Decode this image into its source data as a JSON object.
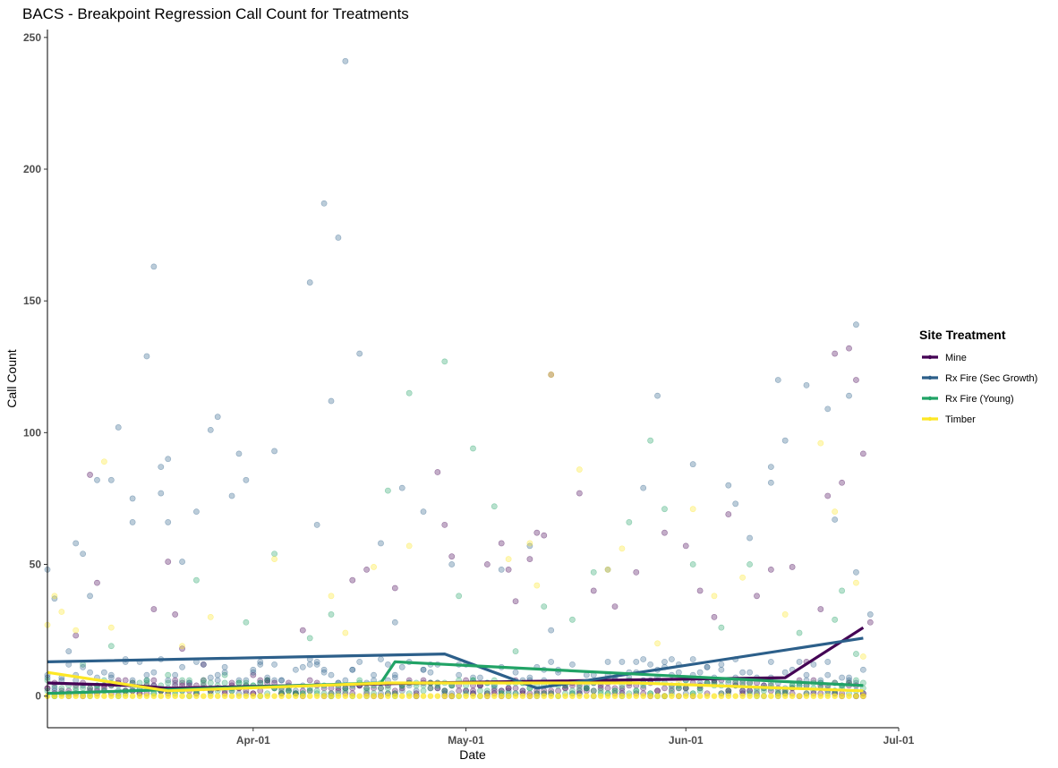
{
  "chart_data": {
    "type": "scatter",
    "title": "BACS - Breakpoint Regression Call Count for Treatments",
    "xlabel": "Date",
    "ylabel": "Call Count",
    "x_range": [
      "2024-03-03",
      "2024-07-01"
    ],
    "x_ticks": [
      {
        "date": "2024-04-01",
        "label": "Apr-01"
      },
      {
        "date": "2024-05-01",
        "label": "May-01"
      },
      {
        "date": "2024-06-01",
        "label": "Jun-01"
      },
      {
        "date": "2024-07-01",
        "label": "Jul-01"
      }
    ],
    "ylim": [
      -12,
      253
    ],
    "y_ticks": [
      0,
      50,
      100,
      150,
      200,
      250
    ],
    "grid": false,
    "legend": {
      "title": "Site Treatment",
      "position": "right"
    },
    "series": [
      {
        "name": "Mine",
        "color": "#440154",
        "regression": [
          [
            "2024-03-03",
            5
          ],
          [
            "2024-03-15",
            4
          ],
          [
            "2024-03-20",
            3
          ],
          [
            "2024-04-25",
            5
          ],
          [
            "2024-06-15",
            7
          ],
          [
            "2024-06-26",
            26
          ]
        ],
        "points": [
          [
            "2024-03-07",
            23
          ],
          [
            "2024-03-09",
            84
          ],
          [
            "2024-03-10",
            43
          ],
          [
            "2024-03-18",
            33
          ],
          [
            "2024-03-20",
            51
          ],
          [
            "2024-03-21",
            31
          ],
          [
            "2024-03-22",
            18
          ],
          [
            "2024-03-25",
            12
          ],
          [
            "2024-04-01",
            8
          ],
          [
            "2024-04-08",
            25
          ],
          [
            "2024-04-15",
            44
          ],
          [
            "2024-04-17",
            48
          ],
          [
            "2024-04-21",
            41
          ],
          [
            "2024-04-26",
            3
          ],
          [
            "2024-04-27",
            85
          ],
          [
            "2024-04-28",
            65
          ],
          [
            "2024-04-29",
            53
          ],
          [
            "2024-05-04",
            50
          ],
          [
            "2024-05-06",
            58
          ],
          [
            "2024-05-07",
            48
          ],
          [
            "2024-05-08",
            36
          ],
          [
            "2024-05-10",
            52
          ],
          [
            "2024-05-11",
            62
          ],
          [
            "2024-05-12",
            61
          ],
          [
            "2024-05-13",
            122
          ],
          [
            "2024-05-17",
            77
          ],
          [
            "2024-05-19",
            40
          ],
          [
            "2024-05-22",
            34
          ],
          [
            "2024-05-25",
            47
          ],
          [
            "2024-05-29",
            62
          ],
          [
            "2024-06-01",
            57
          ],
          [
            "2024-06-03",
            40
          ],
          [
            "2024-06-05",
            30
          ],
          [
            "2024-06-07",
            69
          ],
          [
            "2024-06-11",
            38
          ],
          [
            "2024-06-13",
            48
          ],
          [
            "2024-06-16",
            49
          ],
          [
            "2024-06-18",
            13
          ],
          [
            "2024-06-20",
            33
          ],
          [
            "2024-06-21",
            76
          ],
          [
            "2024-06-22",
            130
          ],
          [
            "2024-06-23",
            81
          ],
          [
            "2024-06-24",
            132
          ],
          [
            "2024-06-25",
            120
          ],
          [
            "2024-06-26",
            92
          ],
          [
            "2024-06-27",
            28
          ],
          [
            "2024-03-14",
            2
          ],
          [
            "2024-04-05",
            1
          ],
          [
            "2024-05-02",
            2
          ],
          [
            "2024-06-09",
            1
          ]
        ]
      },
      {
        "name": "Rx Fire (Sec Growth)",
        "color": "#2c5f8a",
        "regression": [
          [
            "2024-03-03",
            13
          ],
          [
            "2024-04-28",
            16
          ],
          [
            "2024-05-11",
            3
          ],
          [
            "2024-06-26",
            22
          ]
        ],
        "points": [
          [
            "2024-03-03",
            48
          ],
          [
            "2024-03-04",
            37
          ],
          [
            "2024-03-06",
            17
          ],
          [
            "2024-03-07",
            58
          ],
          [
            "2024-03-08",
            54
          ],
          [
            "2024-03-09",
            38
          ],
          [
            "2024-03-10",
            82
          ],
          [
            "2024-03-12",
            82
          ],
          [
            "2024-03-13",
            102
          ],
          [
            "2024-03-15",
            66
          ],
          [
            "2024-03-15",
            75
          ],
          [
            "2024-03-17",
            129
          ],
          [
            "2024-03-18",
            163
          ],
          [
            "2024-03-19",
            87
          ],
          [
            "2024-03-19",
            77
          ],
          [
            "2024-03-20",
            90
          ],
          [
            "2024-03-20",
            66
          ],
          [
            "2024-03-22",
            51
          ],
          [
            "2024-03-24",
            70
          ],
          [
            "2024-03-26",
            101
          ],
          [
            "2024-03-27",
            106
          ],
          [
            "2024-03-29",
            76
          ],
          [
            "2024-03-30",
            92
          ],
          [
            "2024-03-31",
            82
          ],
          [
            "2024-04-04",
            93
          ],
          [
            "2024-04-09",
            157
          ],
          [
            "2024-04-10",
            65
          ],
          [
            "2024-04-11",
            187
          ],
          [
            "2024-04-12",
            112
          ],
          [
            "2024-04-13",
            174
          ],
          [
            "2024-04-14",
            241
          ],
          [
            "2024-04-16",
            130
          ],
          [
            "2024-04-19",
            58
          ],
          [
            "2024-04-21",
            28
          ],
          [
            "2024-04-22",
            79
          ],
          [
            "2024-04-25",
            70
          ],
          [
            "2024-04-29",
            50
          ],
          [
            "2024-05-06",
            48
          ],
          [
            "2024-05-10",
            57
          ],
          [
            "2024-05-13",
            25
          ],
          [
            "2024-05-21",
            48
          ],
          [
            "2024-05-26",
            79
          ],
          [
            "2024-05-28",
            114
          ],
          [
            "2024-06-02",
            88
          ],
          [
            "2024-06-07",
            80
          ],
          [
            "2024-06-08",
            73
          ],
          [
            "2024-06-10",
            60
          ],
          [
            "2024-06-13",
            81
          ],
          [
            "2024-06-13",
            87
          ],
          [
            "2024-06-14",
            120
          ],
          [
            "2024-06-15",
            97
          ],
          [
            "2024-06-18",
            118
          ],
          [
            "2024-06-21",
            109
          ],
          [
            "2024-06-22",
            67
          ],
          [
            "2024-06-24",
            114
          ],
          [
            "2024-06-25",
            141
          ],
          [
            "2024-06-25",
            47
          ],
          [
            "2024-06-27",
            31
          ],
          [
            "2024-04-02",
            12
          ],
          [
            "2024-05-18",
            8
          ]
        ]
      },
      {
        "name": "Rx Fire (Young)",
        "color": "#21a366",
        "regression": [
          [
            "2024-03-03",
            1
          ],
          [
            "2024-04-19",
            5
          ],
          [
            "2024-04-21",
            13
          ],
          [
            "2024-06-26",
            4
          ]
        ],
        "points": [
          [
            "2024-03-04",
            4
          ],
          [
            "2024-03-08",
            12
          ],
          [
            "2024-03-12",
            19
          ],
          [
            "2024-03-20",
            8
          ],
          [
            "2024-03-24",
            44
          ],
          [
            "2024-03-31",
            28
          ],
          [
            "2024-04-04",
            54
          ],
          [
            "2024-04-09",
            22
          ],
          [
            "2024-04-20",
            78
          ],
          [
            "2024-04-23",
            115
          ],
          [
            "2024-04-28",
            127
          ],
          [
            "2024-04-30",
            38
          ],
          [
            "2024-05-02",
            94
          ],
          [
            "2024-05-05",
            72
          ],
          [
            "2024-05-12",
            34
          ],
          [
            "2024-05-16",
            29
          ],
          [
            "2024-05-19",
            47
          ],
          [
            "2024-05-24",
            66
          ],
          [
            "2024-05-27",
            97
          ],
          [
            "2024-05-29",
            71
          ],
          [
            "2024-06-02",
            50
          ],
          [
            "2024-06-06",
            26
          ],
          [
            "2024-06-10",
            50
          ],
          [
            "2024-06-17",
            24
          ],
          [
            "2024-06-22",
            29
          ],
          [
            "2024-06-23",
            40
          ],
          [
            "2024-06-25",
            16
          ],
          [
            "2024-05-08",
            17
          ],
          [
            "2024-04-12",
            31
          ],
          [
            "2024-03-28",
            8
          ]
        ]
      },
      {
        "name": "Timber",
        "color": "#fde725",
        "regression": [
          [
            "2024-03-03",
            9
          ],
          [
            "2024-03-20",
            2
          ],
          [
            "2024-04-20",
            5
          ],
          [
            "2024-05-25",
            5
          ],
          [
            "2024-06-26",
            2
          ]
        ],
        "points": [
          [
            "2024-03-03",
            27
          ],
          [
            "2024-03-04",
            38
          ],
          [
            "2024-03-05",
            32
          ],
          [
            "2024-03-07",
            25
          ],
          [
            "2024-03-11",
            89
          ],
          [
            "2024-03-12",
            26
          ],
          [
            "2024-03-22",
            19
          ],
          [
            "2024-03-26",
            30
          ],
          [
            "2024-04-04",
            52
          ],
          [
            "2024-04-12",
            38
          ],
          [
            "2024-04-14",
            24
          ],
          [
            "2024-04-18",
            49
          ],
          [
            "2024-04-23",
            57
          ],
          [
            "2024-05-07",
            52
          ],
          [
            "2024-05-10",
            58
          ],
          [
            "2024-05-11",
            42
          ],
          [
            "2024-05-13",
            122
          ],
          [
            "2024-05-17",
            86
          ],
          [
            "2024-05-21",
            48
          ],
          [
            "2024-05-23",
            56
          ],
          [
            "2024-05-28",
            20
          ],
          [
            "2024-06-02",
            71
          ],
          [
            "2024-06-05",
            38
          ],
          [
            "2024-06-09",
            45
          ],
          [
            "2024-06-15",
            31
          ],
          [
            "2024-06-20",
            96
          ],
          [
            "2024-06-22",
            70
          ],
          [
            "2024-06-25",
            43
          ],
          [
            "2024-06-26",
            15
          ],
          [
            "2024-05-31",
            5
          ]
        ]
      }
    ]
  }
}
